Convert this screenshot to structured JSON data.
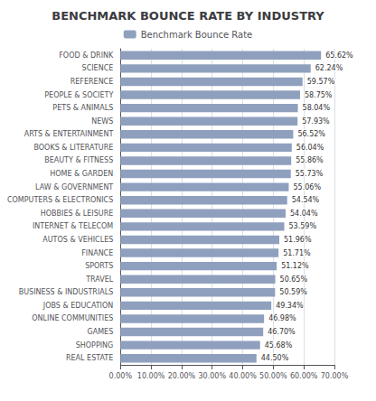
{
  "chart_data": {
    "type": "bar",
    "orientation": "horizontal",
    "title": "BENCHMARK BOUNCE RATE BY INDUSTRY",
    "categories": [
      "FOOD & DRINK",
      "SCIENCE",
      "REFERENCE",
      "PEOPLE & SOCIETY",
      "PETS & ANIMALS",
      "NEWS",
      "ARTS & ENTERTAINMENT",
      "BOOKS & LITERATURE",
      "BEAUTY & FITNESS",
      "HOME & GARDEN",
      "LAW & GOVERNMENT",
      "COMPUTERS & ELECTRONICS",
      "HOBBIES & LEISURE",
      "INTERNET & TELECOM",
      "AUTOS & VEHICLES",
      "FINANCE",
      "SPORTS",
      "TRAVEL",
      "BUSINESS & INDUSTRIALS",
      "JOBS & EDUCATION",
      "ONLINE COMMUNITIES",
      "GAMES",
      "SHOPPING",
      "REAL ESTATE"
    ],
    "series": [
      {
        "name": "Benchmark Bounce Rate",
        "color": "#8fa0be",
        "values": [
          65.62,
          62.24,
          59.57,
          58.75,
          58.04,
          57.93,
          56.52,
          56.04,
          55.86,
          55.73,
          55.06,
          54.54,
          54.04,
          53.59,
          51.96,
          51.71,
          51.12,
          50.65,
          50.59,
          49.34,
          46.98,
          46.7,
          45.68,
          44.5
        ],
        "value_labels": [
          "65.62%",
          "62.24%",
          "59.57%",
          "58.75%",
          "58.04%",
          "57.93%",
          "56.52%",
          "56.04%",
          "55.86%",
          "55.73%",
          "55.06%",
          "54.54%",
          "54.04%",
          "53.59%",
          "51.96%",
          "51.71%",
          "51.12%",
          "50.65%",
          "50.59%",
          "49.34%",
          "46.98%",
          "46.70%",
          "45.68%",
          "44.50%"
        ]
      }
    ],
    "data_labels": true,
    "xlim": [
      0,
      70
    ],
    "xticks": [
      {
        "value": 0,
        "label": "0.00%"
      },
      {
        "value": 10,
        "label": "10.00%"
      },
      {
        "value": 20,
        "label": "20.00%"
      },
      {
        "value": 30,
        "label": "30.00%"
      },
      {
        "value": 40,
        "label": "40.00%"
      },
      {
        "value": 50,
        "label": "50.00%"
      },
      {
        "value": 60,
        "label": "60.00%"
      },
      {
        "value": 70,
        "label": "70.00%"
      }
    ],
    "grid": true,
    "legend": "top"
  }
}
